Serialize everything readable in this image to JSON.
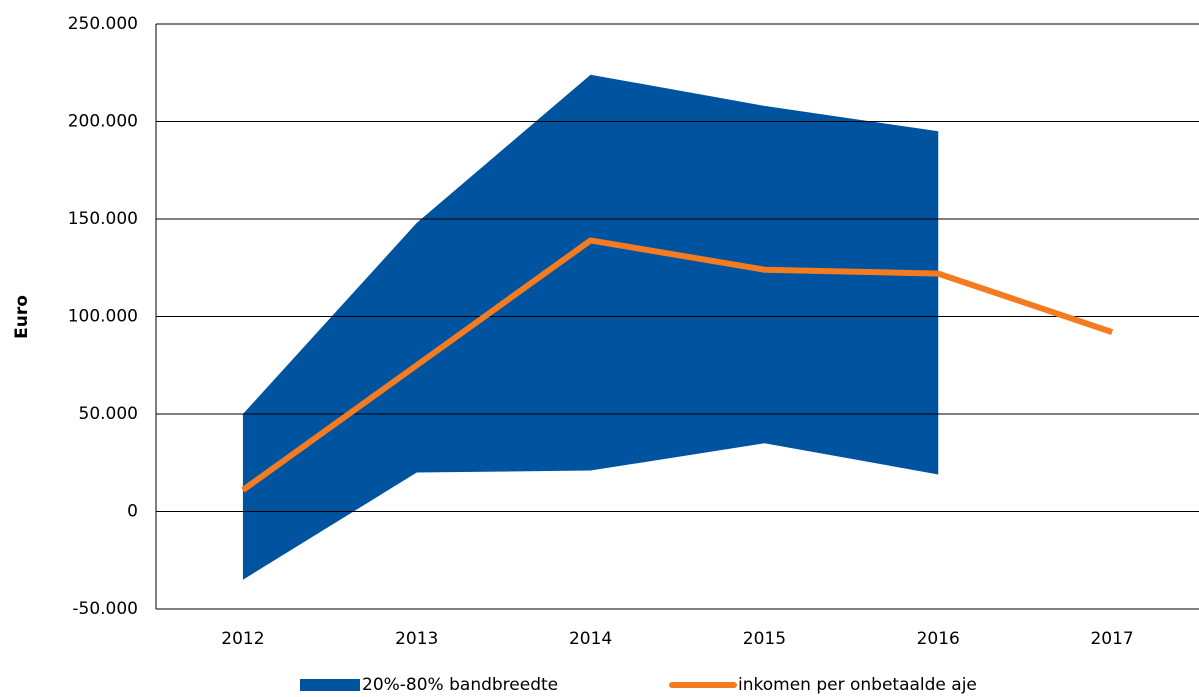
{
  "chart_data": {
    "type": "band-line",
    "y_label": "Euro",
    "categories": [
      "2012",
      "2013",
      "2014",
      "2015",
      "2016",
      "2017"
    ],
    "series": [
      {
        "name": "20%-80% bandbreedte",
        "kind": "band",
        "color": "#00539f",
        "lower": [
          -35000,
          20000,
          21000,
          35000,
          19000,
          null
        ],
        "upper": [
          50000,
          148000,
          224000,
          208000,
          195000,
          null
        ]
      },
      {
        "name": "inkomen per onbetaalde aje",
        "kind": "line",
        "color": "#f47b20",
        "values": [
          11000,
          75000,
          139000,
          124000,
          122000,
          92000
        ]
      }
    ],
    "ylim": [
      -50000,
      250000
    ],
    "yticks": [
      {
        "value": -50000,
        "label": "-50.000"
      },
      0,
      {
        "value": 50000,
        "label": "50.000"
      },
      {
        "value": 100000,
        "label": "100.000"
      },
      {
        "value": 150000,
        "label": "150.000"
      },
      {
        "value": 200000,
        "label": "200.000"
      },
      {
        "value": 250000,
        "label": "250.000"
      }
    ],
    "grid": true
  }
}
